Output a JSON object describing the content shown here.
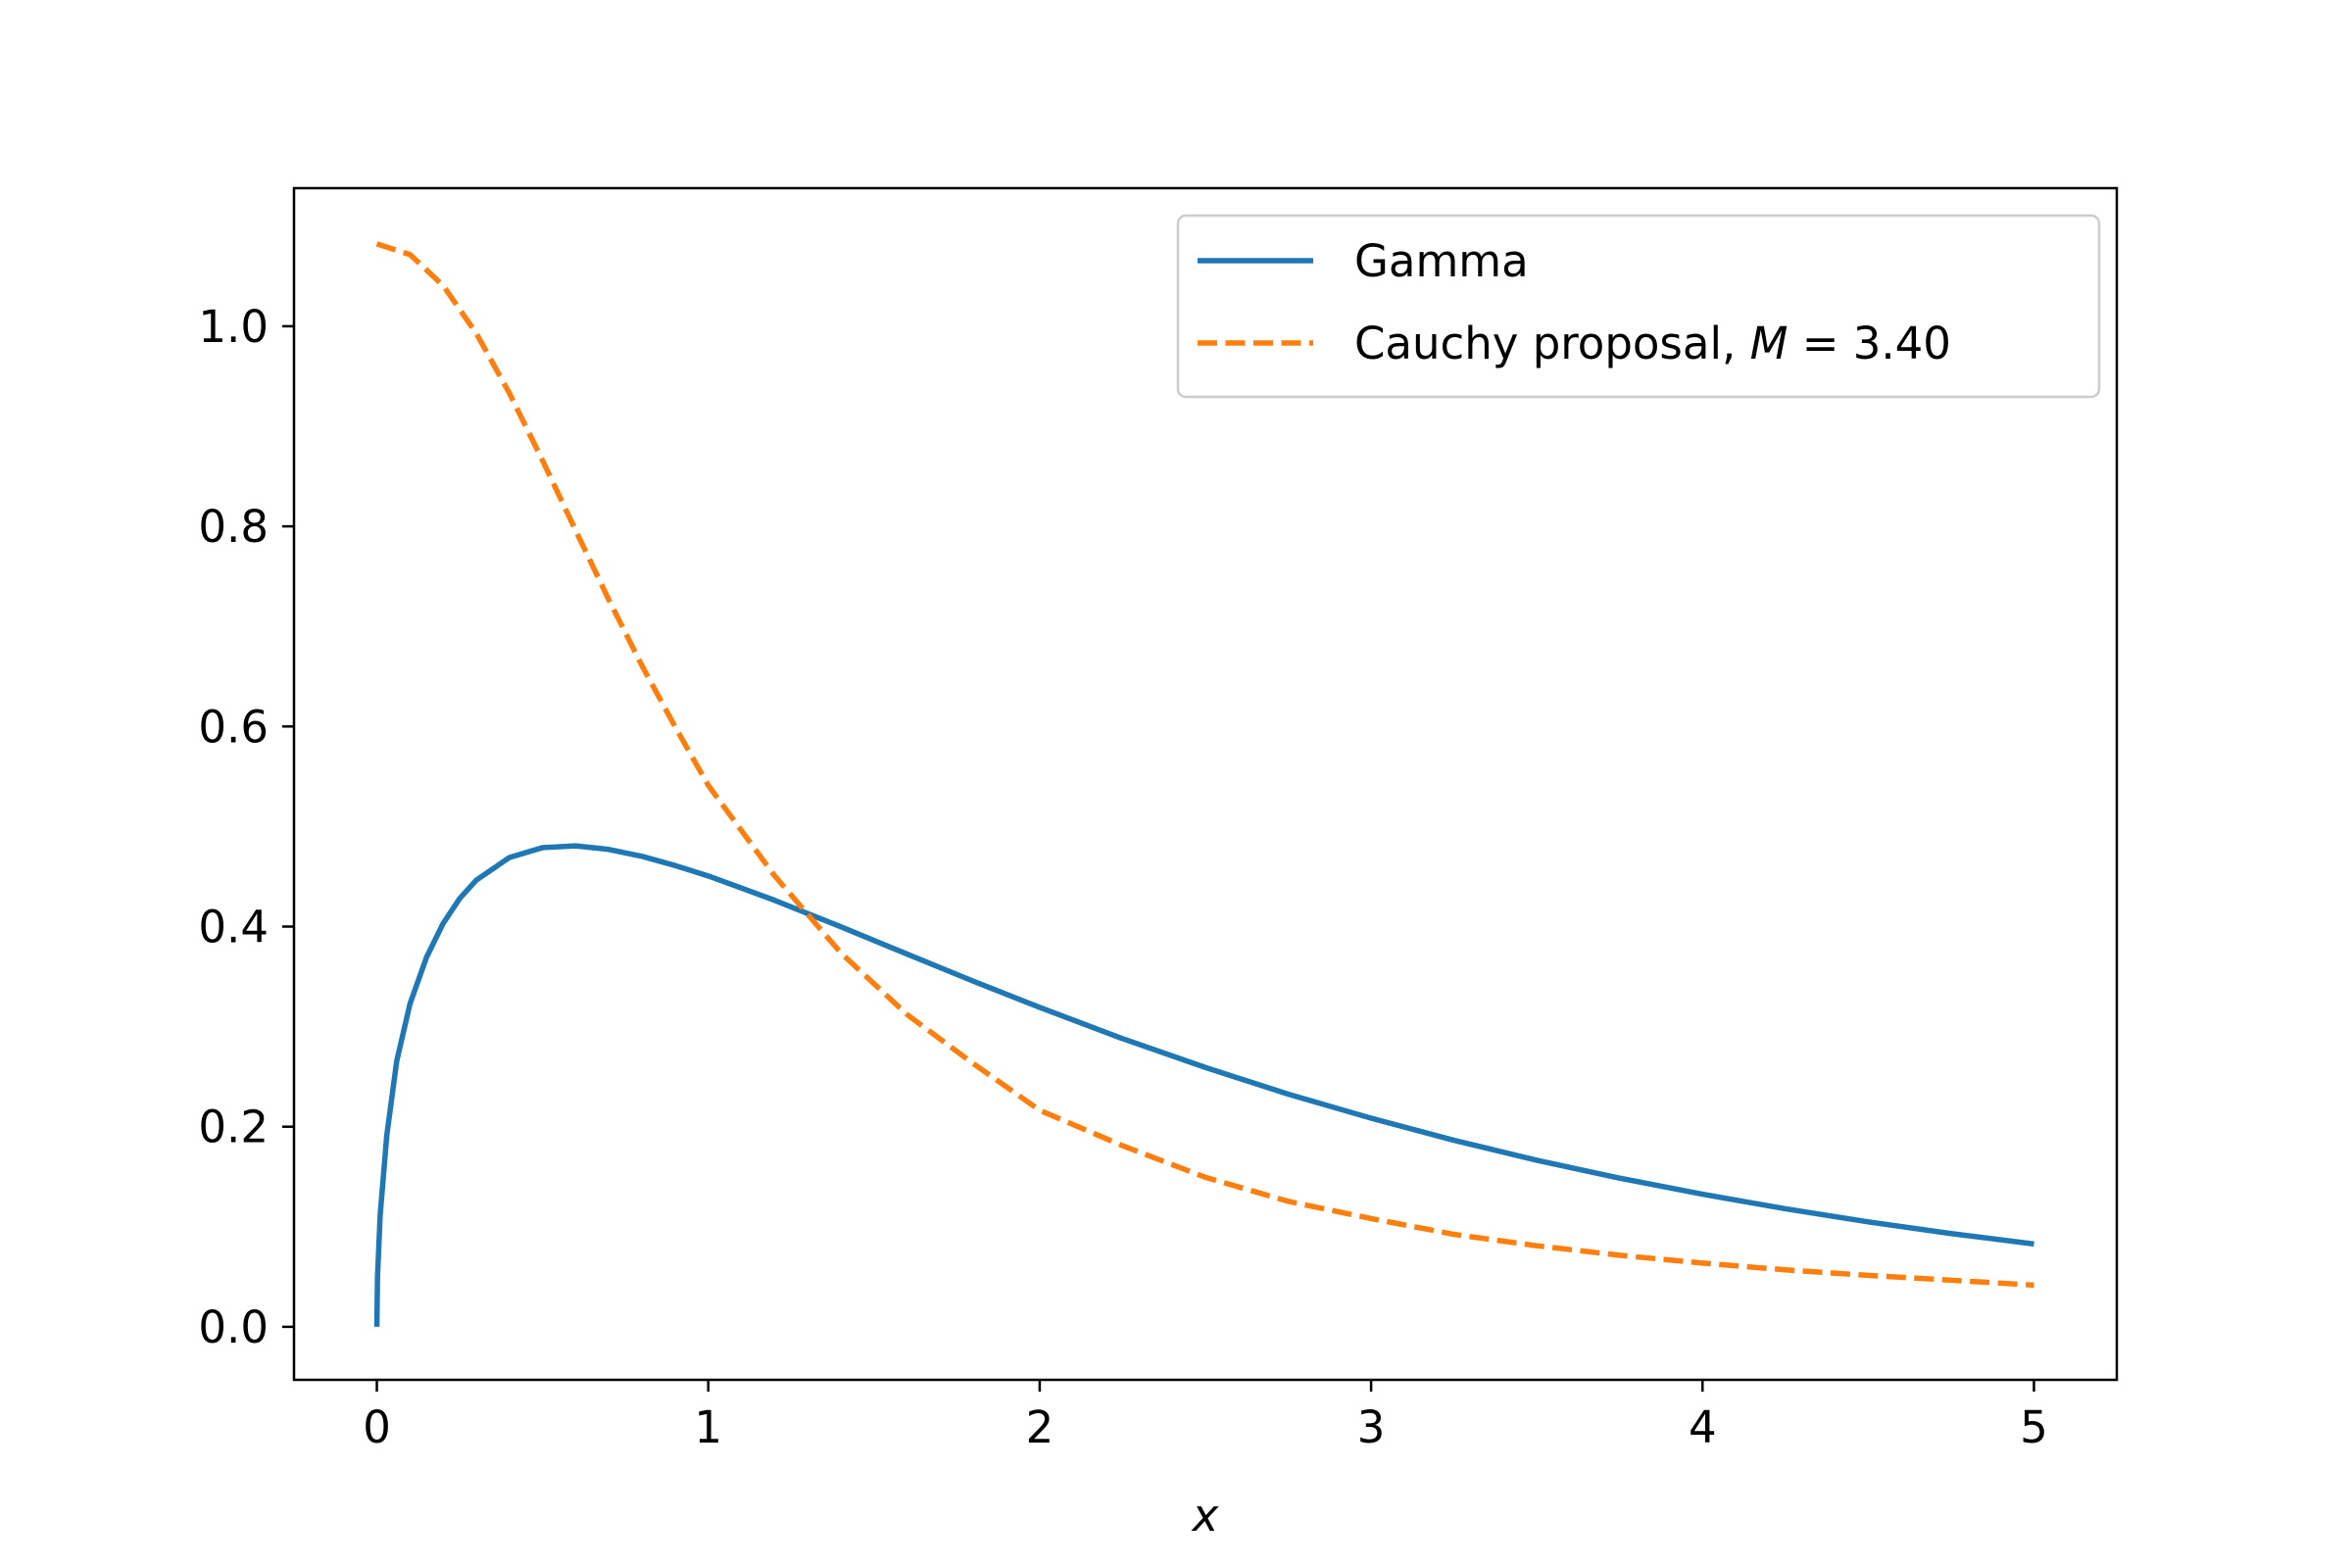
{
  "chart_data": {
    "type": "line",
    "title": "",
    "xlabel": "x",
    "ylabel": "",
    "xlim": [
      -0.25,
      5.25
    ],
    "ylim": [
      -0.053,
      1.138
    ],
    "x_ticks": [
      0,
      1,
      2,
      3,
      4,
      5
    ],
    "x_tick_labels": [
      "0",
      "1",
      "2",
      "3",
      "4",
      "5"
    ],
    "y_ticks": [
      0.0,
      0.2,
      0.4,
      0.6,
      0.8,
      1.0
    ],
    "y_tick_labels": [
      "0.0",
      "0.2",
      "0.4",
      "0.6",
      "0.8",
      "1.0"
    ],
    "grid": false,
    "legend_position": "top-right",
    "series": [
      {
        "name": "Gamma",
        "color": "#1f77b4",
        "style": "solid",
        "x": [
          0.0,
          0.002,
          0.01,
          0.03,
          0.06,
          0.1,
          0.15,
          0.2,
          0.25,
          0.3,
          0.4,
          0.5,
          0.6,
          0.7,
          0.8,
          0.9,
          1.0,
          1.2,
          1.4,
          1.6,
          1.8,
          2.0,
          2.25,
          2.5,
          2.75,
          3.0,
          3.25,
          3.5,
          3.75,
          4.0,
          4.25,
          4.5,
          4.75,
          5.0
        ],
        "y": [
          0.0,
          0.0502,
          0.1117,
          0.1915,
          0.2657,
          0.3228,
          0.3694,
          0.4032,
          0.4281,
          0.4464,
          0.469,
          0.4789,
          0.4807,
          0.4771,
          0.4702,
          0.461,
          0.4506,
          0.4263,
          0.3998,
          0.3725,
          0.3454,
          0.3192,
          0.288,
          0.2592,
          0.2325,
          0.2085,
          0.1864,
          0.1665,
          0.1486,
          0.1325,
          0.118,
          0.1049,
          0.0932,
          0.0828
        ]
      },
      {
        "name": "Cauchy proposal, M = 3.40",
        "color": "#ff7f0e",
        "style": "dashed",
        "x": [
          0.0,
          0.1,
          0.2,
          0.3,
          0.4,
          0.5,
          0.6,
          0.7,
          0.8,
          0.9,
          1.0,
          1.2,
          1.4,
          1.6,
          1.8,
          2.0,
          2.25,
          2.5,
          2.75,
          3.0,
          3.25,
          3.5,
          3.75,
          4.0,
          4.25,
          4.5,
          4.75,
          5.0
        ],
        "y": [
          1.0823,
          1.0716,
          1.0407,
          0.9929,
          0.933,
          0.8658,
          0.7958,
          0.7266,
          0.6607,
          0.5997,
          0.5411,
          0.4508,
          0.3737,
          0.312,
          0.263,
          0.2164,
          0.181,
          0.1494,
          0.1254,
          0.1082,
          0.0924,
          0.081,
          0.0715,
          0.0637,
          0.0569,
          0.0514,
          0.0466,
          0.0416
        ]
      }
    ],
    "legend": {
      "entries": [
        {
          "label": "Gamma",
          "color": "#1f77b4",
          "style": "solid"
        },
        {
          "label": "Cauchy proposal, ",
          "math_symbol": "M",
          "math_rest": " = 3.40",
          "color": "#ff7f0e",
          "style": "dashed"
        }
      ]
    }
  }
}
